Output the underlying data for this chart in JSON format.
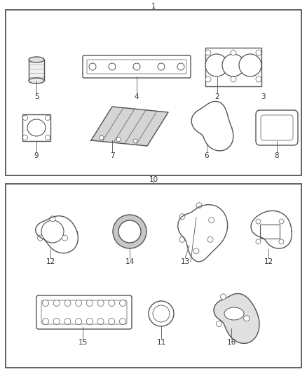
{
  "bg_color": "#ffffff",
  "box_color": "#555555",
  "text_color": "#333333",
  "fig_width": 4.38,
  "fig_height": 5.33,
  "dpi": 100
}
